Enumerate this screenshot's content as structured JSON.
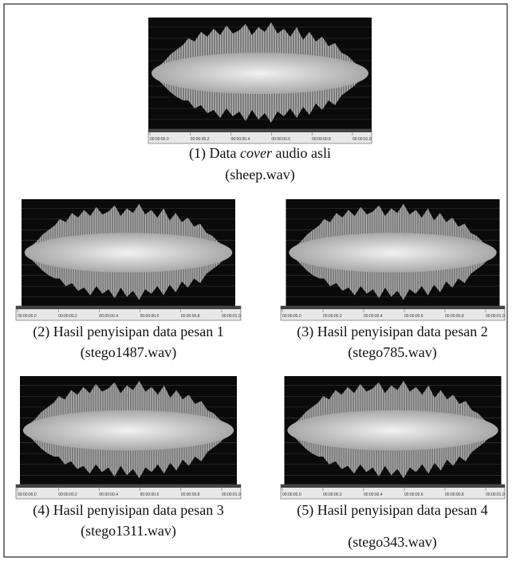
{
  "figures": [
    {
      "caption": "(1) Data",
      "caption_italic": "cover",
      "caption_rest": "audio asli",
      "file": "(sheep.wav)"
    },
    {
      "caption": "(2) Hasil penyisipan  data pesan 1",
      "file": "(stego1487.wav)"
    },
    {
      "caption": "(3) Hasil penyisipan  data pesan 2",
      "file": "(stego785.wav)"
    },
    {
      "caption": "(4) Hasil penyisipan  data pesan 3",
      "file": "(stego1311.wav)"
    },
    {
      "caption": "(5) Hasil penyisipan  data pesan 4",
      "file": "(stego343.wav)"
    }
  ],
  "time_ticks": [
    "00:00:00.0",
    "00:00:00.2",
    "00:00:00.4",
    "00:00:00.6",
    "00:00:00.8",
    "00:00:01.0"
  ]
}
